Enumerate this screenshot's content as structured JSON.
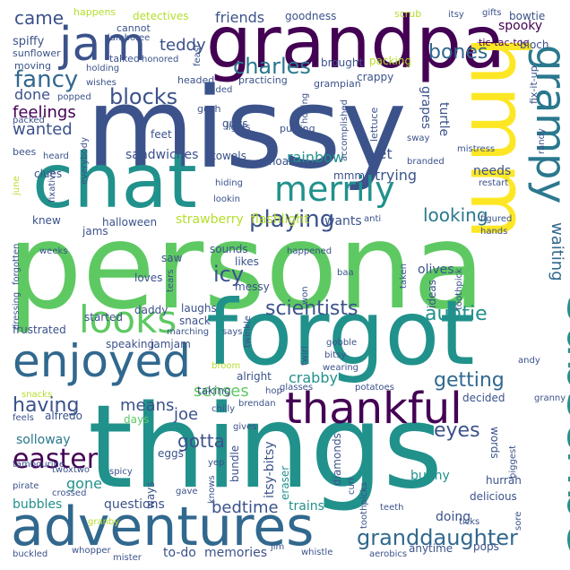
{
  "word_cloud": {
    "words": [
      {
        "text": "persona",
        "color": "#5ec962"
      },
      {
        "text": "missy",
        "color": "#3b528b"
      },
      {
        "text": "things",
        "color": "#21918c"
      },
      {
        "text": "forgot",
        "color": "#21918c"
      },
      {
        "text": "grandpa",
        "color": "#440154"
      },
      {
        "text": "chat",
        "color": "#21918c"
      },
      {
        "text": "adventures",
        "color": "#31688e"
      },
      {
        "text": "hmm",
        "color": "#fde725"
      },
      {
        "text": "subscribe",
        "color": "#21918c"
      },
      {
        "text": "enjoyed",
        "color": "#31688e"
      },
      {
        "text": "thankful",
        "color": "#440154"
      },
      {
        "text": "grampy",
        "color": "#2a788e"
      },
      {
        "text": "looks",
        "color": "#5ec962"
      },
      {
        "text": "jam",
        "color": "#3b528b"
      },
      {
        "text": "merrily",
        "color": "#21918c"
      },
      {
        "text": "granddaughter",
        "color": "#31688e"
      },
      {
        "text": "easter",
        "color": "#440154"
      },
      {
        "text": "playing",
        "color": "#3b528b"
      },
      {
        "text": "scientists",
        "color": "#3b528b"
      },
      {
        "text": "charles",
        "color": "#2a788e"
      },
      {
        "text": "fancy",
        "color": "#31688e"
      },
      {
        "text": "blocks",
        "color": "#3b528b"
      },
      {
        "text": "looking",
        "color": "#2a788e"
      },
      {
        "text": "bones",
        "color": "#31688e"
      },
      {
        "text": "icy",
        "color": "#3b528b"
      },
      {
        "text": "getting",
        "color": "#31688e"
      },
      {
        "text": "eyes",
        "color": "#3b528b"
      },
      {
        "text": "having",
        "color": "#3b528b"
      },
      {
        "text": "auntie",
        "color": "#21918c"
      },
      {
        "text": "senses",
        "color": "#5ec962"
      },
      {
        "text": "wanted",
        "color": "#3b528b"
      },
      {
        "text": "feelings",
        "color": "#440154"
      },
      {
        "text": "came",
        "color": "#3b528b"
      },
      {
        "text": "teddy",
        "color": "#3b528b"
      },
      {
        "text": "friends",
        "color": "#3b528b"
      },
      {
        "text": "waiting",
        "color": "#31688e"
      },
      {
        "text": "gotta",
        "color": "#3b528b"
      },
      {
        "text": "means",
        "color": "#3b528b"
      },
      {
        "text": "joe",
        "color": "#3b528b"
      },
      {
        "text": "bedtime",
        "color": "#3b528b"
      },
      {
        "text": "spooky",
        "color": "#440154"
      },
      {
        "text": "done",
        "color": "#3b528b"
      },
      {
        "text": "crabby",
        "color": "#21918c"
      },
      {
        "text": "rainbow",
        "color": "#21918c"
      },
      {
        "text": "sandwiches",
        "color": "#3b528b"
      },
      {
        "text": "strawberry",
        "color": "#b5de2b"
      },
      {
        "text": "flashlight",
        "color": "#b5de2b"
      },
      {
        "text": "wants",
        "color": "#3b528b"
      },
      {
        "text": "gone",
        "color": "#21918c"
      },
      {
        "text": "solloway",
        "color": "#2a788e"
      },
      {
        "text": "bubbles",
        "color": "#21918c"
      },
      {
        "text": "questions",
        "color": "#3b528b"
      },
      {
        "text": "memories",
        "color": "#3b528b"
      },
      {
        "text": "to-do",
        "color": "#3b528b"
      },
      {
        "text": "trains",
        "color": "#21918c"
      },
      {
        "text": "bunny",
        "color": "#21918c"
      },
      {
        "text": "doing",
        "color": "#3b528b"
      },
      {
        "text": "vet",
        "color": "#3b528b"
      },
      {
        "text": "trying",
        "color": "#3b528b"
      },
      {
        "text": "needs",
        "color": "#3b528b"
      },
      {
        "text": "turtle",
        "color": "#3b528b"
      },
      {
        "text": "grapes",
        "color": "#3b528b"
      },
      {
        "text": "clues",
        "color": "#3b528b"
      },
      {
        "text": "feet",
        "color": "#3b528b"
      },
      {
        "text": "guys",
        "color": "#3b528b"
      },
      {
        "text": "towels",
        "color": "#3b528b"
      },
      {
        "text": "whoa",
        "color": "#3b528b"
      },
      {
        "text": "mmm",
        "color": "#3b528b"
      },
      {
        "text": "knew",
        "color": "#3b528b"
      },
      {
        "text": "jams",
        "color": "#3b528b"
      },
      {
        "text": "halloween",
        "color": "#3b528b"
      },
      {
        "text": "saw",
        "color": "#3b528b"
      },
      {
        "text": "likes",
        "color": "#3b528b"
      },
      {
        "text": "sounds",
        "color": "#3b528b"
      },
      {
        "text": "loves",
        "color": "#3b528b"
      },
      {
        "text": "messy",
        "color": "#3b528b"
      },
      {
        "text": "daddy",
        "color": "#3b528b"
      },
      {
        "text": "laughs",
        "color": "#3b528b"
      },
      {
        "text": "snack",
        "color": "#3b528b"
      },
      {
        "text": "started",
        "color": "#3b528b"
      },
      {
        "text": "frustrated",
        "color": "#3b528b"
      },
      {
        "text": "speaking",
        "color": "#3b528b"
      },
      {
        "text": "jamjam",
        "color": "#3b528b"
      },
      {
        "text": "alright",
        "color": "#3b528b"
      },
      {
        "text": "taking",
        "color": "#3b528b"
      },
      {
        "text": "days",
        "color": "#5ec962"
      },
      {
        "text": "alfredo",
        "color": "#3b528b"
      },
      {
        "text": "eggs",
        "color": "#3b528b"
      },
      {
        "text": "ways",
        "color": "#3b528b"
      },
      {
        "text": "olives",
        "color": "#3b528b"
      },
      {
        "text": "ideas",
        "color": "#3b528b"
      },
      {
        "text": "decided",
        "color": "#3b528b"
      },
      {
        "text": "words",
        "color": "#3b528b"
      },
      {
        "text": "diamonds",
        "color": "#3b528b"
      },
      {
        "text": "itsy-bitsy",
        "color": "#3b528b"
      },
      {
        "text": "eraser",
        "color": "#21918c"
      },
      {
        "text": "bundle",
        "color": "#3b528b"
      },
      {
        "text": "hurrah",
        "color": "#3b528b"
      },
      {
        "text": "delicious",
        "color": "#3b528b"
      },
      {
        "text": "anytime",
        "color": "#3b528b"
      },
      {
        "text": "pops",
        "color": "#3b528b"
      },
      {
        "text": "spiffy",
        "color": "#3b528b"
      },
      {
        "text": "moving",
        "color": "#3b528b"
      },
      {
        "text": "sunflower",
        "color": "#3b528b"
      },
      {
        "text": "detectives",
        "color": "#b5de2b"
      },
      {
        "text": "happens",
        "color": "#b5de2b"
      },
      {
        "text": "goodness",
        "color": "#3b528b"
      },
      {
        "text": "cannot",
        "color": "#3b528b"
      },
      {
        "text": "jamboree",
        "color": "#3b528b"
      },
      {
        "text": "talked",
        "color": "#3b528b"
      },
      {
        "text": "honored",
        "color": "#3b528b"
      },
      {
        "text": "brought",
        "color": "#3b528b"
      },
      {
        "text": "packing",
        "color": "#b5de2b"
      },
      {
        "text": "crappy",
        "color": "#3b528b"
      },
      {
        "text": "bowtie",
        "color": "#3b528b"
      },
      {
        "text": "tic-tac-toe",
        "color": "#440154"
      },
      {
        "text": "bloch",
        "color": "#3b528b"
      },
      {
        "text": "fix-it-up",
        "color": "#3b528b"
      },
      {
        "text": "gifts",
        "color": "#3b528b"
      },
      {
        "text": "itsy",
        "color": "#3b528b"
      },
      {
        "text": "scrub",
        "color": "#b5de2b"
      },
      {
        "text": "feast",
        "color": "#3b528b"
      },
      {
        "text": "headed",
        "color": "#3b528b"
      },
      {
        "text": "practicing",
        "color": "#3b528b"
      },
      {
        "text": "grampian",
        "color": "#3b528b"
      },
      {
        "text": "gosh",
        "color": "#3b528b"
      },
      {
        "text": "lights",
        "color": "#3b528b"
      },
      {
        "text": "putting",
        "color": "#3b528b"
      },
      {
        "text": "holding",
        "color": "#3b528b"
      },
      {
        "text": "wishes",
        "color": "#3b528b"
      },
      {
        "text": "popped",
        "color": "#3b528b"
      },
      {
        "text": "ended",
        "color": "#3b528b"
      },
      {
        "text": "hoping",
        "color": "#3b528b"
      },
      {
        "text": "accomplished",
        "color": "#3b528b"
      },
      {
        "text": "lettuce",
        "color": "#3b528b"
      },
      {
        "text": "sway",
        "color": "#3b528b"
      },
      {
        "text": "mistress",
        "color": "#3b528b"
      },
      {
        "text": "randy",
        "color": "#3b528b"
      },
      {
        "text": "branded",
        "color": "#3b528b"
      },
      {
        "text": "restart",
        "color": "#3b528b"
      },
      {
        "text": "packed",
        "color": "#3b528b"
      },
      {
        "text": "bees",
        "color": "#3b528b"
      },
      {
        "text": "heard",
        "color": "#3b528b"
      },
      {
        "text": "everybody",
        "color": "#3b528b"
      },
      {
        "text": "fixative",
        "color": "#3b528b"
      },
      {
        "text": "june",
        "color": "#b5de2b"
      },
      {
        "text": "hiding",
        "color": "#3b528b"
      },
      {
        "text": "lookin",
        "color": "#3b528b"
      },
      {
        "text": "anti",
        "color": "#3b528b"
      },
      {
        "text": "figured",
        "color": "#3b528b"
      },
      {
        "text": "hands",
        "color": "#3b528b"
      },
      {
        "text": "weeks",
        "color": "#3b528b"
      },
      {
        "text": "forgotten",
        "color": "#3b528b"
      },
      {
        "text": "happened",
        "color": "#3b528b"
      },
      {
        "text": "baa",
        "color": "#3b528b"
      },
      {
        "text": "taken",
        "color": "#3b528b"
      },
      {
        "text": "toothpick",
        "color": "#3b528b"
      },
      {
        "text": "tears",
        "color": "#3b528b"
      },
      {
        "text": "won",
        "color": "#3b528b"
      },
      {
        "text": "dressing",
        "color": "#3b528b"
      },
      {
        "text": "twinkle",
        "color": "#3b528b"
      },
      {
        "text": "marching",
        "color": "#3b528b"
      },
      {
        "text": "says",
        "color": "#3b528b"
      },
      {
        "text": "gobble",
        "color": "#3b528b"
      },
      {
        "text": "bitsy",
        "color": "#3b528b"
      },
      {
        "text": "wearing",
        "color": "#3b528b"
      },
      {
        "text": "twirl",
        "color": "#3b528b"
      },
      {
        "text": "andy",
        "color": "#3b528b"
      },
      {
        "text": "broom",
        "color": "#b5de2b"
      },
      {
        "text": "glasses",
        "color": "#3b528b"
      },
      {
        "text": "hop",
        "color": "#3b528b"
      },
      {
        "text": "potatoes",
        "color": "#3b528b"
      },
      {
        "text": "granny",
        "color": "#3b528b"
      },
      {
        "text": "snacks",
        "color": "#b5de2b"
      },
      {
        "text": "feels",
        "color": "#3b528b"
      },
      {
        "text": "chilly",
        "color": "#3b528b"
      },
      {
        "text": "brendan",
        "color": "#3b528b"
      },
      {
        "text": "gives",
        "color": "#3b528b"
      },
      {
        "text": "tambourine",
        "color": "#3b528b"
      },
      {
        "text": "twoxtwo",
        "color": "#3b528b"
      },
      {
        "text": "pirate",
        "color": "#3b528b"
      },
      {
        "text": "crossed",
        "color": "#3b528b"
      },
      {
        "text": "spicy",
        "color": "#3b528b"
      },
      {
        "text": "gave",
        "color": "#3b528b"
      },
      {
        "text": "knows",
        "color": "#3b528b"
      },
      {
        "text": "yep",
        "color": "#3b528b"
      },
      {
        "text": "curl",
        "color": "#3b528b"
      },
      {
        "text": "toothpicks",
        "color": "#3b528b"
      },
      {
        "text": "biggest",
        "color": "#3b528b"
      },
      {
        "text": "teeth",
        "color": "#3b528b"
      },
      {
        "text": "sore",
        "color": "#3b528b"
      },
      {
        "text": "ticks",
        "color": "#3b528b"
      },
      {
        "text": "granby",
        "color": "#b5de2b"
      },
      {
        "text": "buckled",
        "color": "#3b528b"
      },
      {
        "text": "whopper",
        "color": "#3b528b"
      },
      {
        "text": "mister",
        "color": "#3b528b"
      },
      {
        "text": "jim",
        "color": "#3b528b"
      },
      {
        "text": "whistle",
        "color": "#3b528b"
      },
      {
        "text": "aerobics",
        "color": "#3b528b"
      }
    ]
  }
}
